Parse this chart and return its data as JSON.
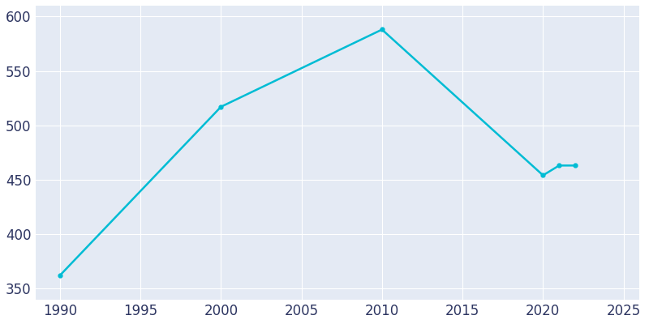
{
  "years": [
    1990,
    2000,
    2010,
    2020,
    2021,
    2022
  ],
  "population": [
    362,
    517,
    588,
    454,
    463,
    463
  ],
  "line_color": "#00bcd4",
  "marker": "o",
  "marker_size": 3.5,
  "line_width": 1.8,
  "fig_bg_color": "#ffffff",
  "plot_bg_color": "#e4eaf4",
  "grid_color": "#ffffff",
  "tick_color": "#2d3561",
  "xlim": [
    1988.5,
    2026
  ],
  "ylim": [
    340,
    610
  ],
  "xticks": [
    1990,
    1995,
    2000,
    2005,
    2010,
    2015,
    2020,
    2025
  ],
  "yticks": [
    350,
    400,
    450,
    500,
    550,
    600
  ],
  "tick_fontsize": 12
}
